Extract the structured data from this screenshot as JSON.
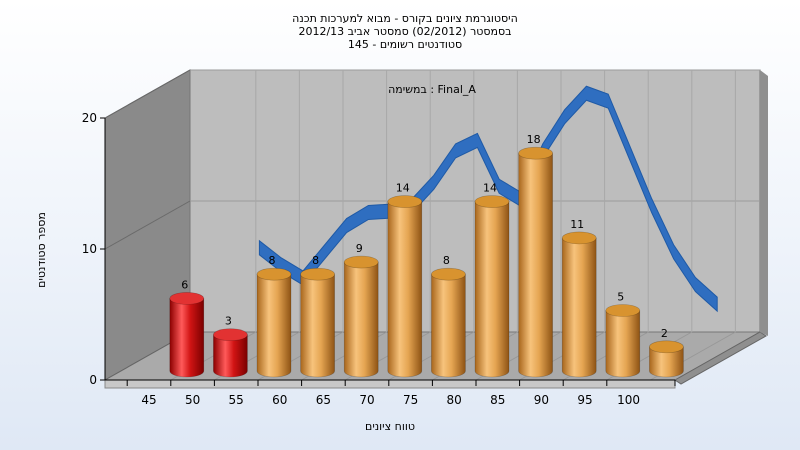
{
  "chart_data": {
    "type": "bar",
    "title_lines": [
      "היסטוגרמת ציונים בקורס - מבוא למערכות תכנה",
      "בסמסטר  (02/2012)  סמסטר אביב 2012/13",
      "סטודנטים רשומים - 145"
    ],
    "annotation": "במשימה : Final_A",
    "xlabel": "טווח ציונים",
    "ylabel": "מספר סטודנטים",
    "categories": [
      "45",
      "50",
      "55",
      "60",
      "65",
      "70",
      "75",
      "80",
      "85",
      "90",
      "95",
      "100"
    ],
    "values": [
      6,
      3,
      8,
      8,
      9,
      14,
      8,
      14,
      18,
      11,
      5,
      2
    ],
    "value_labels": [
      "6",
      "3",
      "8",
      "8",
      "9",
      "14",
      "8",
      "14",
      "18",
      "11",
      "5",
      "2"
    ],
    "bar_colors": [
      "#d11414",
      "#d11414",
      "#e5a552",
      "#e5a552",
      "#e5a552",
      "#e5a552",
      "#e5a552",
      "#e5a552",
      "#e5a552",
      "#e5a552",
      "#e5a552",
      "#e5a552"
    ],
    "yticks": [
      "0",
      "10",
      "20"
    ],
    "ylim": [
      0,
      20
    ],
    "curve_color": "#2f6ec0",
    "curve": {
      "x": [
        52.5,
        55,
        57.5,
        60,
        62.5,
        65,
        67.5,
        70,
        72.5,
        75,
        77.5,
        80,
        82.5,
        85,
        87.5,
        90,
        92.5,
        95,
        97.5,
        100,
        102.5,
        105
      ],
      "y": [
        7.8,
        6.5,
        5.5,
        7.5,
        9.5,
        10.5,
        10.6,
        11,
        12.8,
        15.2,
        16,
        12.5,
        11.5,
        15.2,
        17.8,
        19.6,
        19,
        15,
        11,
        7.5,
        5,
        3.5
      ]
    },
    "grid": true
  }
}
